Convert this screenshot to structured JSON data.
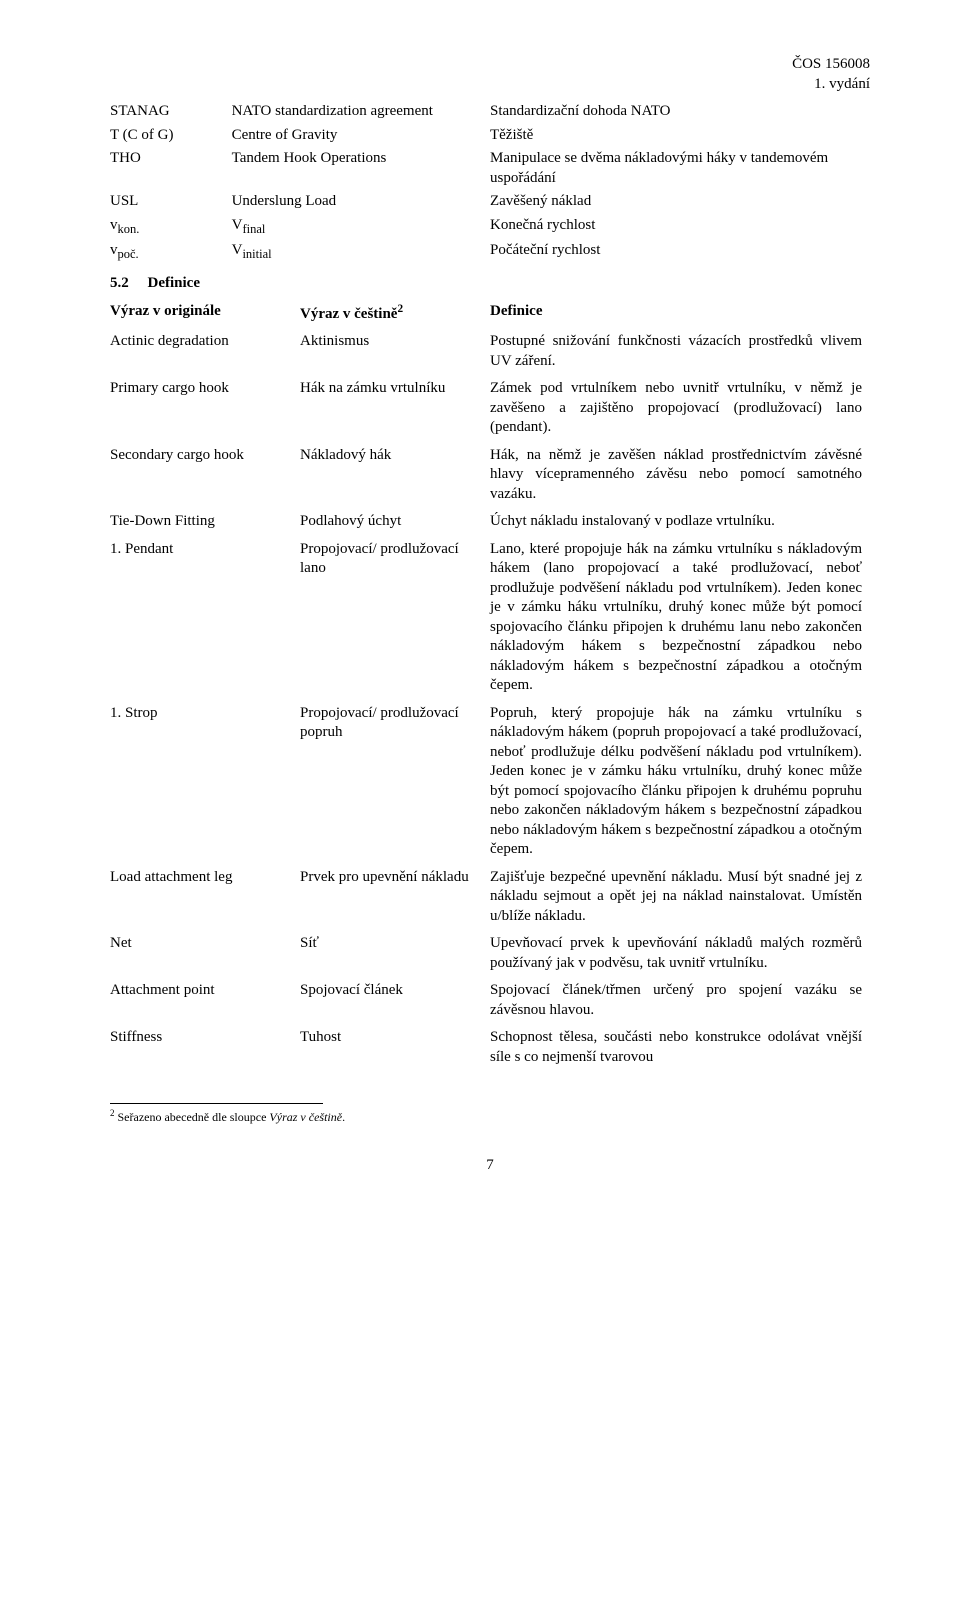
{
  "header": {
    "doc_id": "ČOS 156008",
    "edition": "1. vydání"
  },
  "table1": {
    "rows": [
      {
        "abbr": "STANAG",
        "en": "NATO standardization agreement",
        "cz": "Standardizační dohoda NATO"
      },
      {
        "abbr": "T (C of G)",
        "en": "Centre of Gravity",
        "cz": "Těžiště"
      },
      {
        "abbr": "THO",
        "en": "Tandem Hook Operations",
        "cz": "Manipulace se dvěma nákladovými háky v tandemovém uspořádání"
      },
      {
        "abbr": "USL",
        "en": "Underslung Load",
        "cz": "Zavěšený náklad"
      },
      {
        "abbr_html": "v<sub>kon.</sub>",
        "en_html": "V<sub>final</sub>",
        "cz": "Konečná rychlost"
      },
      {
        "abbr_html": "v<sub>poč.</sub>",
        "en_html": "V<sub>initial</sub>",
        "cz": "Počáteční rychlost"
      }
    ]
  },
  "section": {
    "num": "5.2",
    "title": "Definice"
  },
  "defs_header": {
    "col1": "Výraz v originále",
    "col2_html": "Výraz v češtině<span class=\"sup2\">2</span>",
    "col3": "Definice"
  },
  "defs": [
    {
      "en": "Actinic degradation",
      "cz": "Aktinismus",
      "def": "Postupné snižování funkčnosti vázacích prostředků vlivem UV záření."
    },
    {
      "en": "Primary cargo hook",
      "cz": "Hák na zámku vrtulníku",
      "def": "Zámek pod vrtulníkem nebo uvnitř vrtulníku, v němž je zavěšeno a zajištěno propojovací (prodlužovací) lano (pendant)."
    },
    {
      "en": "Secondary cargo hook",
      "cz": "Nákladový hák",
      "def": "Hák, na němž je zavěšen náklad prostřednictvím závěsné hlavy vícepramenného závěsu nebo pomocí samotného vazáku."
    },
    {
      "en": "Tie-Down Fitting",
      "cz": "Podlahový úchyt",
      "def": "Úchyt nákladu instalovaný v podlaze vrtulníku."
    },
    {
      "en": "1. Pendant",
      "cz": "Propojovací/ prodlužovací lano",
      "def": "Lano, které propojuje hák na zámku vrtulníku s nákladovým hákem (lano propojovací a také prodlužovací, neboť prodlužuje podvěšení nákladu pod vrtulníkem). Jeden konec je v zámku háku vrtulníku, druhý konec může být pomocí spojovacího článku připojen k druhému lanu nebo zakončen nákladovým hákem s bezpečnostní západkou nebo nákladovým hákem s bezpečnostní západkou a otočným čepem."
    },
    {
      "en": "1. Strop",
      "cz": "Propojovací/ prodlužovací popruh",
      "def": "Popruh, který propojuje hák na zámku vrtulníku s nákladovým hákem (popruh propojovací a také prodlužovací, neboť prodlužuje délku podvěšení nákladu pod vrtulníkem). Jeden konec je v zámku háku vrtulníku, druhý konec může být pomocí spojovacího článku připojen k druhému popruhu nebo zakončen nákladovým hákem s bezpečnostní západkou nebo nákladovým hákem s bezpečnostní západkou a otočným čepem."
    },
    {
      "en": "Load attachment leg",
      "cz": "Prvek pro upevnění nákladu",
      "def": "Zajišťuje bezpečné upevnění nákladu. Musí být snadné jej z nákladu sejmout a opět jej na náklad nainstalovat. Umístěn u/blíže nákladu."
    },
    {
      "en": "Net",
      "cz": "Síť",
      "def": "Upevňovací prvek k upevňování nákladů malých rozměrů používaný jak v podvěsu, tak uvnitř vrtulníku."
    },
    {
      "en": "Attachment point",
      "cz": "Spojovací článek",
      "def": "Spojovací článek/třmen určený pro spojení vazáku se závěsnou hlavou."
    },
    {
      "en": "Stiffness",
      "cz": "Tuhost",
      "def": "Schopnost tělesa, součásti nebo konstrukce odolávat vnější síle s co nejmenší tvarovou"
    }
  ],
  "footnote": {
    "idx": "2",
    "text_html": "Seřazeno abecedně dle sloupce <i>Výraz v češtině</i>."
  },
  "page_number": "7"
}
